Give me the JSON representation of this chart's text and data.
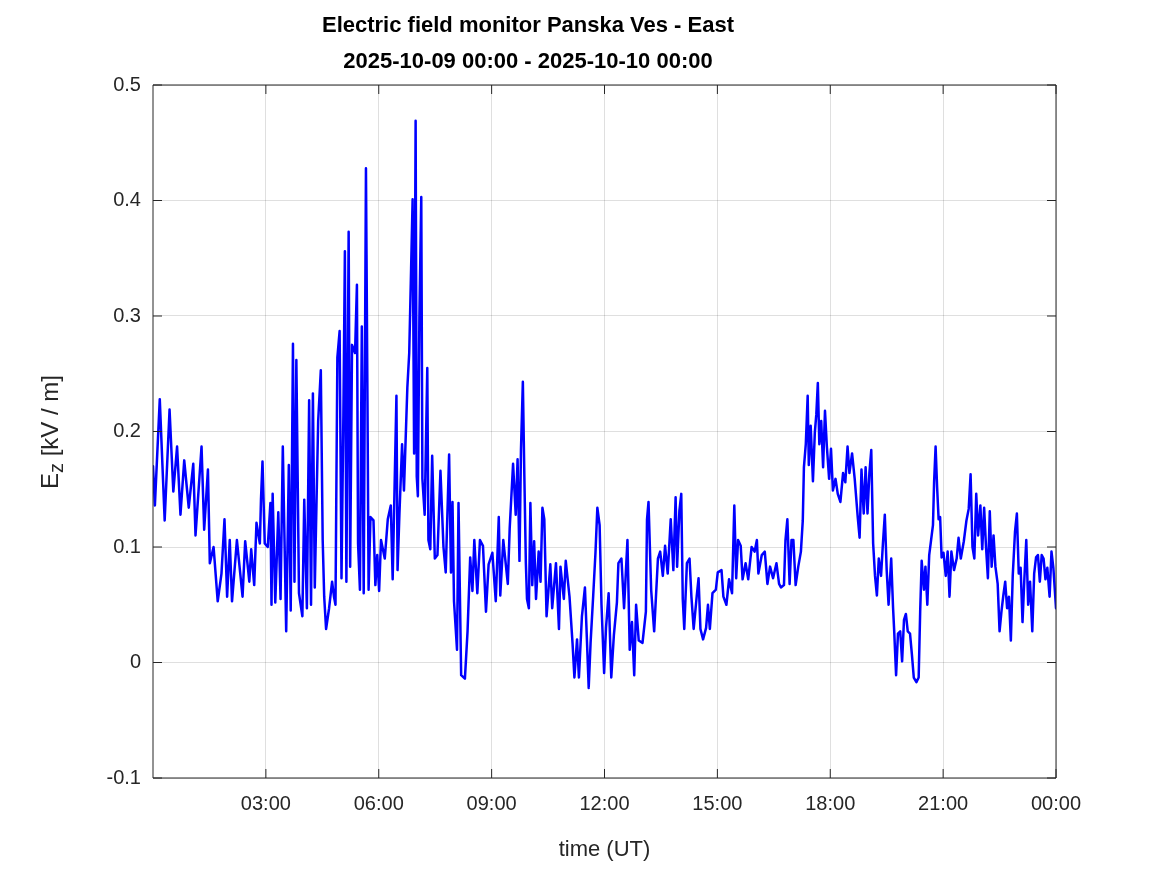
{
  "chart_data": {
    "type": "line",
    "title": "Electric field monitor Panska Ves - East",
    "subtitle": "2025-10-09 00:00 - 2025-10-10 00:00",
    "xlabel": "time (UT)",
    "ylabel": "E$_{z}$ [kV / m]",
    "x": [
      0.0,
      0.05,
      0.18,
      0.31,
      0.44,
      0.54,
      0.64,
      0.73,
      0.83,
      0.95,
      1.07,
      1.13,
      1.29,
      1.36,
      1.46,
      1.51,
      1.61,
      1.72,
      1.82,
      1.9,
      1.97,
      2.04,
      2.1,
      2.23,
      2.38,
      2.45,
      2.56,
      2.61,
      2.69,
      2.75,
      2.84,
      2.87,
      2.91,
      2.97,
      3.05,
      3.12,
      3.15,
      3.18,
      3.25,
      3.33,
      3.39,
      3.45,
      3.54,
      3.61,
      3.66,
      3.72,
      3.76,
      3.81,
      3.88,
      3.97,
      4.02,
      4.09,
      4.15,
      4.2,
      4.25,
      4.3,
      4.39,
      4.46,
      4.51,
      4.55,
      4.6,
      4.68,
      4.76,
      4.81,
      4.85,
      4.9,
      4.96,
      5.01,
      5.06,
      5.1,
      5.14,
      5.2,
      5.24,
      5.29,
      5.37,
      5.42,
      5.45,
      5.5,
      5.55,
      5.6,
      5.66,
      5.7,
      5.73,
      5.78,
      5.86,
      5.91,
      5.96,
      6.01,
      6.06,
      6.16,
      6.24,
      6.32,
      6.37,
      6.47,
      6.5,
      6.55,
      6.62,
      6.67,
      6.76,
      6.81,
      6.86,
      6.9,
      6.94,
      6.98,
      7.01,
      7.04,
      7.08,
      7.13,
      7.16,
      7.22,
      7.29,
      7.32,
      7.37,
      7.42,
      7.49,
      7.56,
      7.64,
      7.72,
      7.78,
      7.87,
      7.92,
      7.96,
      8.0,
      8.08,
      8.12,
      8.19,
      8.29,
      8.36,
      8.43,
      8.49,
      8.54,
      8.62,
      8.69,
      8.77,
      8.85,
      8.92,
      9.02,
      9.11,
      9.19,
      9.23,
      9.31,
      9.43,
      9.48,
      9.57,
      9.64,
      9.69,
      9.74,
      9.78,
      9.83,
      9.87,
      9.91,
      9.94,
      9.99,
      10.03,
      10.08,
      10.13,
      10.18,
      10.25,
      10.3,
      10.35,
      10.4,
      10.46,
      10.56,
      10.61,
      10.71,
      10.79,
      10.83,
      10.92,
      10.97,
      11.07,
      11.15,
      11.2,
      11.27,
      11.32,
      11.4,
      11.48,
      11.53,
      11.58,
      11.63,
      11.7,
      11.76,
      11.81,
      11.87,
      11.92,
      11.99,
      12.04,
      12.11,
      12.18,
      12.25,
      12.33,
      12.37,
      12.45,
      12.52,
      12.61,
      12.67,
      12.73,
      12.79,
      12.84,
      12.91,
      13.01,
      13.1,
      13.13,
      13.17,
      13.24,
      13.32,
      13.42,
      13.48,
      13.55,
      13.61,
      13.68,
      13.76,
      13.83,
      13.89,
      13.93,
      13.99,
      14.04,
      14.08,
      14.12,
      14.19,
      14.26,
      14.31,
      14.37,
      14.45,
      14.5,
      14.55,
      14.62,
      14.7,
      14.75,
      14.8,
      14.87,
      14.96,
      15.01,
      15.11,
      15.16,
      15.24,
      15.31,
      15.39,
      15.45,
      15.5,
      15.55,
      15.62,
      15.67,
      15.75,
      15.82,
      15.91,
      15.99,
      16.05,
      16.09,
      16.18,
      16.26,
      16.33,
      16.4,
      16.48,
      16.57,
      16.64,
      16.69,
      16.77,
      16.81,
      16.86,
      16.92,
      16.97,
      17.02,
      17.08,
      17.15,
      17.22,
      17.27,
      17.3,
      17.35,
      17.4,
      17.43,
      17.48,
      17.54,
      17.59,
      17.63,
      17.67,
      17.71,
      17.76,
      17.81,
      17.86,
      17.91,
      17.97,
      18.02,
      18.07,
      18.14,
      18.2,
      18.27,
      18.34,
      18.4,
      18.46,
      18.51,
      18.58,
      18.65,
      18.73,
      18.78,
      18.83,
      18.89,
      18.94,
      18.99,
      19.04,
      19.09,
      19.14,
      19.19,
      19.24,
      19.29,
      19.35,
      19.4,
      19.45,
      19.5,
      19.55,
      19.62,
      19.67,
      19.7,
      19.75,
      19.8,
      19.86,
      19.91,
      19.96,
      20.01,
      20.06,
      20.12,
      20.17,
      20.22,
      20.29,
      20.35,
      20.39,
      20.43,
      20.49,
      20.53,
      20.58,
      20.63,
      20.68,
      20.73,
      20.76,
      20.8,
      20.84,
      20.88,
      20.92,
      20.96,
      21.01,
      21.07,
      21.12,
      21.17,
      21.22,
      21.29,
      21.36,
      21.41,
      21.47,
      21.55,
      21.62,
      21.68,
      21.73,
      21.78,
      21.83,
      21.88,
      21.93,
      21.99,
      22.04,
      22.09,
      22.14,
      22.19,
      22.24,
      22.29,
      22.34,
      22.39,
      22.45,
      22.5,
      22.55,
      22.6,
      22.65,
      22.7,
      22.75,
      22.8,
      22.85,
      22.91,
      22.96,
      23.01,
      23.06,
      23.11,
      23.16,
      23.21,
      23.26,
      23.31,
      23.37,
      23.42,
      23.47,
      23.52,
      23.57,
      23.62,
      23.67,
      23.72,
      23.77,
      23.83,
      23.88,
      23.93,
      24.0
    ],
    "values": [
      0.17,
      0.136,
      0.228,
      0.123,
      0.219,
      0.148,
      0.187,
      0.128,
      0.175,
      0.134,
      0.172,
      0.11,
      0.187,
      0.115,
      0.167,
      0.086,
      0.1,
      0.053,
      0.077,
      0.124,
      0.057,
      0.106,
      0.053,
      0.106,
      0.057,
      0.105,
      0.07,
      0.098,
      0.067,
      0.121,
      0.103,
      0.141,
      0.174,
      0.103,
      0.1,
      0.138,
      0.05,
      0.146,
      0.052,
      0.13,
      0.055,
      0.187,
      0.027,
      0.171,
      0.045,
      0.276,
      0.07,
      0.262,
      0.06,
      0.04,
      0.141,
      0.047,
      0.227,
      0.05,
      0.233,
      0.065,
      0.209,
      0.253,
      0.106,
      0.057,
      0.029,
      0.047,
      0.07,
      0.057,
      0.05,
      0.264,
      0.287,
      0.073,
      0.214,
      0.356,
      0.07,
      0.373,
      0.083,
      0.275,
      0.268,
      0.327,
      0.103,
      0.063,
      0.291,
      0.06,
      0.428,
      0.228,
      0.063,
      0.126,
      0.123,
      0.067,
      0.093,
      0.062,
      0.106,
      0.09,
      0.124,
      0.136,
      0.072,
      0.231,
      0.08,
      0.129,
      0.189,
      0.149,
      0.238,
      0.268,
      0.341,
      0.401,
      0.181,
      0.469,
      0.161,
      0.144,
      0.298,
      0.403,
      0.159,
      0.128,
      0.255,
      0.106,
      0.098,
      0.179,
      0.09,
      0.093,
      0.166,
      0.1,
      0.078,
      0.18,
      0.078,
      0.139,
      0.053,
      0.011,
      0.138,
      -0.011,
      -0.014,
      0.027,
      0.091,
      0.062,
      0.106,
      0.06,
      0.106,
      0.101,
      0.044,
      0.085,
      0.095,
      0.053,
      0.126,
      0.058,
      0.106,
      0.068,
      0.116,
      0.172,
      0.128,
      0.176,
      0.088,
      0.184,
      0.243,
      0.161,
      0.086,
      0.055,
      0.047,
      0.138,
      0.067,
      0.105,
      0.055,
      0.096,
      0.07,
      0.134,
      0.124,
      0.04,
      0.085,
      0.047,
      0.086,
      0.029,
      0.083,
      0.055,
      0.088,
      0.057,
      0.017,
      -0.013,
      0.02,
      -0.013,
      0.04,
      0.065,
      0.022,
      -0.022,
      0.017,
      0.058,
      0.095,
      0.134,
      0.119,
      0.05,
      -0.009,
      0.03,
      0.06,
      -0.013,
      0.024,
      0.052,
      0.086,
      0.09,
      0.047,
      0.106,
      0.011,
      0.035,
      -0.011,
      0.05,
      0.019,
      0.017,
      0.044,
      0.124,
      0.139,
      0.063,
      0.027,
      0.09,
      0.096,
      0.075,
      0.101,
      0.077,
      0.124,
      0.08,
      0.143,
      0.083,
      0.131,
      0.146,
      0.055,
      0.029,
      0.086,
      0.09,
      0.057,
      0.029,
      0.057,
      0.073,
      0.029,
      0.02,
      0.03,
      0.05,
      0.029,
      0.06,
      0.063,
      0.078,
      0.08,
      0.057,
      0.05,
      0.072,
      0.06,
      0.136,
      0.073,
      0.106,
      0.101,
      0.072,
      0.086,
      0.072,
      0.1,
      0.096,
      0.106,
      0.077,
      0.093,
      0.096,
      0.068,
      0.083,
      0.073,
      0.086,
      0.068,
      0.065,
      0.067,
      0.106,
      0.124,
      0.068,
      0.106,
      0.106,
      0.067,
      0.083,
      0.096,
      0.123,
      0.169,
      0.189,
      0.231,
      0.171,
      0.205,
      0.157,
      0.199,
      0.215,
      0.242,
      0.189,
      0.209,
      0.169,
      0.218,
      0.187,
      0.159,
      0.185,
      0.149,
      0.159,
      0.146,
      0.139,
      0.164,
      0.156,
      0.187,
      0.164,
      0.181,
      0.159,
      0.126,
      0.108,
      0.167,
      0.129,
      0.169,
      0.129,
      0.164,
      0.184,
      0.103,
      0.075,
      0.058,
      0.09,
      0.075,
      0.103,
      0.128,
      0.08,
      0.05,
      0.09,
      0.047,
      0.027,
      -0.011,
      0.025,
      0.027,
      0.001,
      0.037,
      0.042,
      0.027,
      0.025,
      0.007,
      -0.013,
      -0.017,
      -0.013,
      0.044,
      0.088,
      0.063,
      0.083,
      0.05,
      0.093,
      0.106,
      0.119,
      0.156,
      0.187,
      0.152,
      0.124,
      0.126,
      0.091,
      0.095,
      0.075,
      0.096,
      0.057,
      0.096,
      0.08,
      0.09,
      0.108,
      0.09,
      0.105,
      0.123,
      0.133,
      0.163,
      0.1,
      0.09,
      0.146,
      0.11,
      0.136,
      0.098,
      0.134,
      0.1,
      0.073,
      0.131,
      0.083,
      0.11,
      0.083,
      0.068,
      0.027,
      0.044,
      0.058,
      0.07,
      0.047,
      0.057,
      0.019,
      0.075,
      0.113,
      0.129,
      0.077,
      0.082,
      0.035,
      0.073,
      0.106,
      0.05,
      0.07,
      0.027,
      0.077,
      0.091,
      0.093,
      0.07,
      0.093,
      0.09,
      0.072,
      0.082,
      0.057,
      0.096,
      0.082,
      0.047
    ],
    "color": "#0000ff",
    "xlim": [
      0,
      24
    ],
    "xticks": [
      {
        "value": 3,
        "label": "03:00"
      },
      {
        "value": 6,
        "label": "06:00"
      },
      {
        "value": 9,
        "label": "09:00"
      },
      {
        "value": 12,
        "label": "12:00"
      },
      {
        "value": 15,
        "label": "15:00"
      },
      {
        "value": 18,
        "label": "18:00"
      },
      {
        "value": 21,
        "label": "21:00"
      },
      {
        "value": 24,
        "label": "00:00"
      }
    ],
    "ylim": [
      -0.1,
      0.5
    ],
    "yticks": [
      -0.1,
      0,
      0.1,
      0.2,
      0.3,
      0.4,
      0.5
    ],
    "grid": true,
    "marker": "none",
    "line_style": "solid"
  }
}
